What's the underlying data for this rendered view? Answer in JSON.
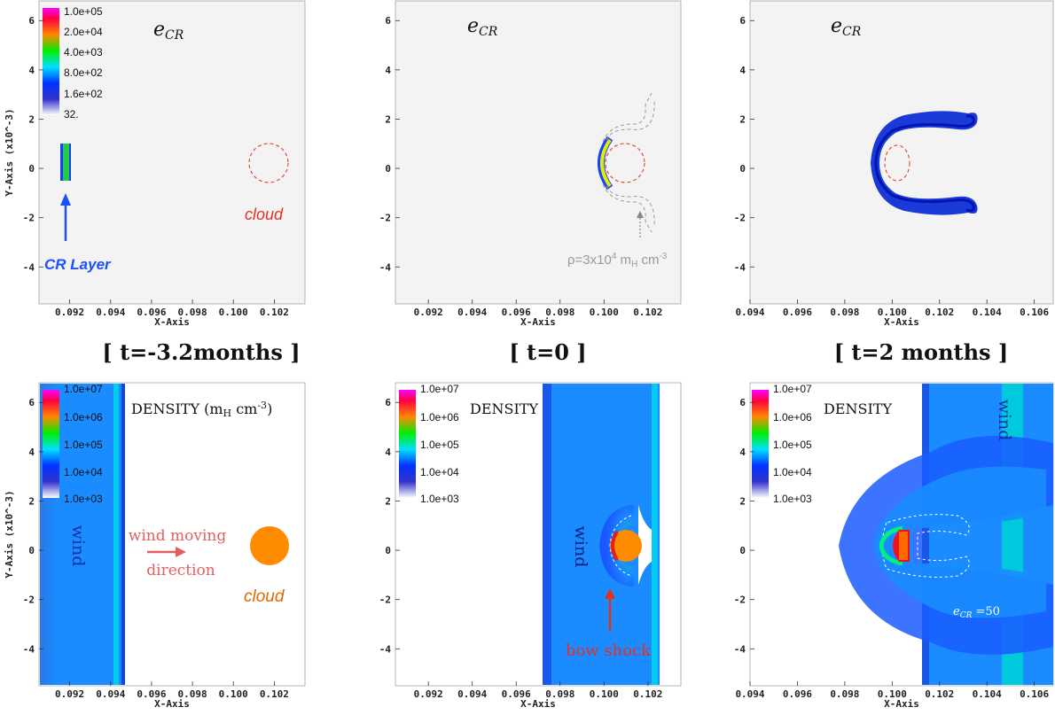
{
  "time_labels": [
    "[ t=-3.2months ]",
    "[ t=0 ]",
    "[ t=2 months ]"
  ],
  "axes": {
    "xlabel": "X-Axis",
    "ylabel": "Y-Axis (x10^-3)"
  },
  "colors": {
    "background": "#f3f3f3",
    "wind": "#1a8cff",
    "cloud": "#ff8c00",
    "red_annotation": "#e03020"
  },
  "chart_data": [
    {
      "type": "heatmap",
      "panel": "top-left",
      "variable": "e_CR",
      "title_main": "e",
      "title_sub": "CR",
      "colorbar": {
        "max_label": "1.0e+05",
        "min_label": "32.",
        "ticks": [
          "1.0e+05",
          "2.0e+04",
          "4.0e+03",
          "8.0e+02",
          "1.6e+02",
          "32."
        ]
      },
      "xlim": [
        0.0905,
        0.1035
      ],
      "ylim": [
        -5.5,
        6.8
      ],
      "xticks": [
        "0.092",
        "0.094",
        "0.096",
        "0.098",
        "0.100",
        "0.102"
      ],
      "xtick_values": [
        0.092,
        0.094,
        0.096,
        0.098,
        0.1,
        0.102
      ],
      "yticks": [
        "6",
        "4",
        "2",
        "0",
        "-2",
        "-4"
      ],
      "ytick_values": [
        6,
        4,
        2,
        0,
        -2,
        -4
      ],
      "annotations": {
        "layer": "CR Layer",
        "cloud": "cloud"
      }
    },
    {
      "type": "heatmap",
      "panel": "top-middle",
      "variable": "e_CR",
      "title_main": "e",
      "title_sub": "CR",
      "xlim": [
        0.0905,
        0.1035
      ],
      "ylim": [
        -5.5,
        6.8
      ],
      "xticks": [
        "0.092",
        "0.094",
        "0.096",
        "0.098",
        "0.100",
        "0.102"
      ],
      "xtick_values": [
        0.092,
        0.094,
        0.096,
        0.098,
        0.1,
        0.102
      ],
      "yticks": [
        "6",
        "4",
        "2",
        "0",
        "-2",
        "-4"
      ],
      "ytick_values": [
        6,
        4,
        2,
        0,
        -2,
        -4
      ],
      "annotations": {
        "contour_label": "ρ=3x10",
        "contour_exp": "4",
        "contour_units": " m",
        "contour_sub": "H",
        "contour_tail": " cm",
        "contour_tail_exp": "-3"
      }
    },
    {
      "type": "heatmap",
      "panel": "top-right",
      "variable": "e_CR",
      "title_main": "e",
      "title_sub": "CR",
      "xlim": [
        0.094,
        0.1068
      ],
      "ylim": [
        -5.5,
        6.8
      ],
      "xticks": [
        "0.094",
        "0.096",
        "0.098",
        "0.100",
        "0.102",
        "0.104",
        "0.106"
      ],
      "xtick_values": [
        0.094,
        0.096,
        0.098,
        0.1,
        0.102,
        0.104,
        0.106
      ],
      "yticks": [
        "6",
        "4",
        "2",
        "0",
        "-2",
        "-4"
      ],
      "ytick_values": [
        6,
        4,
        2,
        0,
        -2,
        -4
      ]
    },
    {
      "type": "heatmap",
      "panel": "bottom-left",
      "variable": "DENSITY",
      "title_main": "DENSITY (m",
      "title_sub": "H",
      "title_tail": " cm",
      "title_exp": "-3",
      "title_close": ")",
      "colorbar": {
        "ticks": [
          "1.0e+07",
          "1.0e+06",
          "1.0e+05",
          "1.0e+04",
          "1.0e+03"
        ]
      },
      "xlim": [
        0.0905,
        0.1035
      ],
      "ylim": [
        -5.5,
        6.8
      ],
      "xticks": [
        "0.092",
        "0.094",
        "0.096",
        "0.098",
        "0.100",
        "0.102"
      ],
      "xtick_values": [
        0.092,
        0.094,
        0.096,
        0.098,
        0.1,
        0.102
      ],
      "yticks": [
        "6",
        "4",
        "2",
        "0",
        "-2",
        "-4"
      ],
      "ytick_values": [
        6,
        4,
        2,
        0,
        -2,
        -4
      ],
      "annotations": {
        "wind": "wind",
        "wind_moving_1": "wind moving",
        "wind_moving_2": "direction",
        "cloud": "cloud"
      }
    },
    {
      "type": "heatmap",
      "panel": "bottom-middle",
      "variable": "DENSITY",
      "title_main": "DENSITY",
      "colorbar": {
        "ticks": [
          "1.0e+07",
          "1.0e+06",
          "1.0e+05",
          "1.0e+04",
          "1.0e+03"
        ]
      },
      "xlim": [
        0.0905,
        0.1035
      ],
      "ylim": [
        -5.5,
        6.8
      ],
      "xticks": [
        "0.092",
        "0.094",
        "0.096",
        "0.098",
        "0.100",
        "0.102"
      ],
      "xtick_values": [
        0.092,
        0.094,
        0.096,
        0.098,
        0.1,
        0.102
      ],
      "yticks": [
        "6",
        "4",
        "2",
        "0",
        "-2",
        "-4"
      ],
      "ytick_values": [
        6,
        4,
        2,
        0,
        -2,
        -4
      ],
      "annotations": {
        "wind": "wind",
        "bow_shock": "bow shock"
      }
    },
    {
      "type": "heatmap",
      "panel": "bottom-right",
      "variable": "DENSITY",
      "title_main": "DENSITY",
      "colorbar": {
        "ticks": [
          "1.0e+07",
          "1.0e+06",
          "1.0e+05",
          "1.0e+04",
          "1.0e+03"
        ]
      },
      "xlim": [
        0.094,
        0.1068
      ],
      "ylim": [
        -5.5,
        6.8
      ],
      "xticks": [
        "0.094",
        "0.096",
        "0.098",
        "0.100",
        "0.102",
        "0.104",
        "0.106"
      ],
      "xtick_values": [
        0.094,
        0.096,
        0.098,
        0.1,
        0.102,
        0.104,
        0.106
      ],
      "yticks": [
        "6",
        "4",
        "2",
        "0",
        "-2",
        "-4"
      ],
      "ytick_values": [
        6,
        4,
        2,
        0,
        -2,
        -4
      ],
      "annotations": {
        "wind": "wind",
        "contour_main": "e",
        "contour_sub": "CR",
        "contour_tail": " =50"
      }
    }
  ]
}
